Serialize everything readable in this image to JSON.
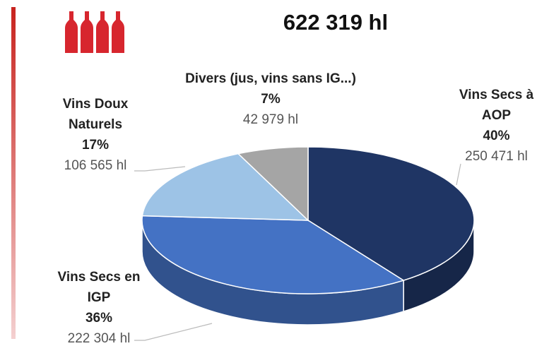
{
  "chart_data": {
    "type": "pie",
    "title": "622 319 hl",
    "categories": [
      "Vins Secs à AOP",
      "Vins Secs en IGP",
      "Vins Doux Naturels",
      "Divers (jus, vins sans IG...)"
    ],
    "values": [
      250471,
      222304,
      106565,
      42979
    ],
    "value_labels": [
      "250 471 hl",
      "222 304 hl",
      "106 565 hl",
      "42 979 hl"
    ],
    "percentage_labels": [
      "40%",
      "36%",
      "17%",
      "7%"
    ],
    "colors": [
      "#1f3564",
      "#4472c4",
      "#9dc3e6",
      "#a5a5a5"
    ]
  }
}
